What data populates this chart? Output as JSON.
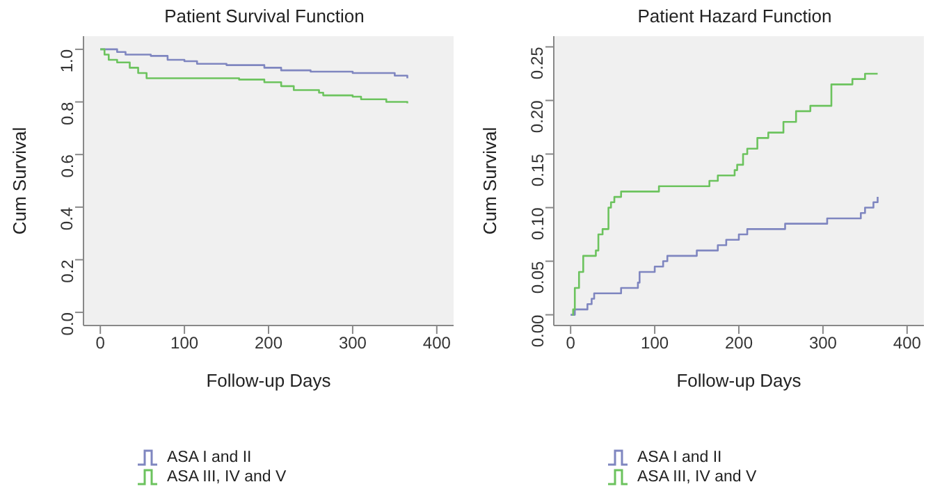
{
  "chart_data": [
    {
      "type": "step",
      "title": "Patient Survival Function",
      "xlabel": "Follow-up Days",
      "ylabel": "Cum Survival",
      "xlim": [
        -20,
        420
      ],
      "xticks": [
        0,
        100,
        200,
        300,
        400
      ],
      "ylim": [
        -0.05,
        1.05
      ],
      "yticks": [
        {
          "value": 0,
          "label": "0.0"
        },
        0.2,
        0.4,
        0.6,
        0.8,
        {
          "value": 1,
          "label": "1.0"
        }
      ],
      "legend": "bottom",
      "line_style": "solid",
      "series": [
        {
          "name": "ASA I and II",
          "color": "#7f86c0",
          "x": [
            0,
            20,
            30,
            60,
            80,
            100,
            115,
            150,
            195,
            215,
            250,
            300,
            350,
            365
          ],
          "values": [
            1.0,
            0.99,
            0.98,
            0.975,
            0.96,
            0.955,
            0.945,
            0.94,
            0.93,
            0.92,
            0.915,
            0.91,
            0.9,
            0.89
          ]
        },
        {
          "name": "ASA III, IV and V",
          "color": "#6cc35e",
          "x": [
            0,
            5,
            10,
            20,
            35,
            45,
            55,
            165,
            195,
            215,
            230,
            260,
            265,
            300,
            310,
            340,
            365
          ],
          "values": [
            1.0,
            0.98,
            0.96,
            0.95,
            0.93,
            0.91,
            0.89,
            0.885,
            0.875,
            0.86,
            0.845,
            0.835,
            0.825,
            0.82,
            0.81,
            0.8,
            0.795
          ]
        }
      ]
    },
    {
      "type": "step",
      "title": "Patient Hazard Function",
      "xlabel": "Follow-up Days",
      "ylabel": "Cum Survival",
      "xlim": [
        -20,
        420
      ],
      "xticks": [
        0,
        100,
        200,
        300,
        400
      ],
      "ylim": [
        -0.01,
        0.26
      ],
      "yticks": [
        {
          "value": 0,
          "label": "0.00"
        },
        0.05,
        {
          "value": 0.1,
          "label": "0.10"
        },
        0.15,
        {
          "value": 0.2,
          "label": "0.20"
        },
        0.25
      ],
      "legend": "bottom",
      "line_style": "solid",
      "series": [
        {
          "name": "ASA I and II",
          "color": "#7f86c0",
          "x": [
            0,
            5,
            20,
            25,
            28,
            60,
            80,
            82,
            100,
            110,
            115,
            150,
            175,
            185,
            200,
            210,
            255,
            305,
            345,
            350,
            360,
            365
          ],
          "values": [
            0,
            0.005,
            0.01,
            0.015,
            0.02,
            0.025,
            0.03,
            0.04,
            0.045,
            0.05,
            0.055,
            0.06,
            0.065,
            0.07,
            0.075,
            0.08,
            0.085,
            0.09,
            0.095,
            0.1,
            0.105,
            0.11
          ]
        },
        {
          "name": "ASA III, IV and V",
          "color": "#6cc35e",
          "x": [
            2,
            3,
            5,
            10,
            15,
            30,
            33,
            38,
            45,
            48,
            52,
            60,
            105,
            165,
            175,
            195,
            198,
            205,
            210,
            222,
            235,
            253,
            268,
            285,
            310,
            335,
            350,
            365
          ],
          "values": [
            0,
            0.005,
            0.025,
            0.04,
            0.055,
            0.06,
            0.075,
            0.08,
            0.1,
            0.105,
            0.11,
            0.115,
            0.12,
            0.125,
            0.13,
            0.135,
            0.14,
            0.15,
            0.155,
            0.165,
            0.17,
            0.18,
            0.19,
            0.195,
            0.215,
            0.22,
            0.225,
            0.225
          ]
        }
      ]
    }
  ]
}
